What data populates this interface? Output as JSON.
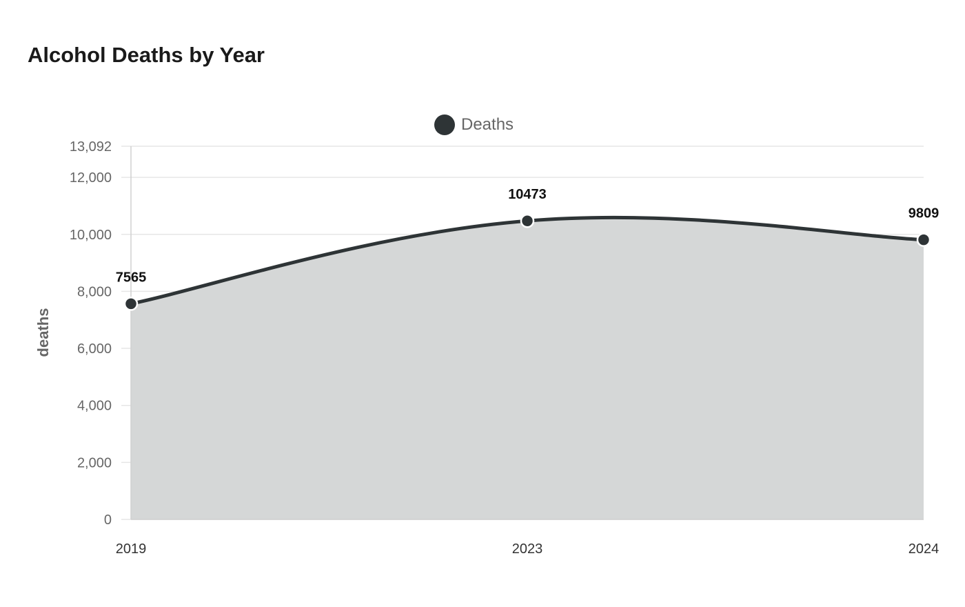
{
  "chart_data": {
    "type": "area",
    "title": "Alcohol Deaths by Year",
    "ylabel": "deaths",
    "xlabel": "",
    "categories": [
      "2019",
      "2023",
      "2024"
    ],
    "series": [
      {
        "name": "Deaths",
        "values": [
          7565,
          10473,
          9809
        ]
      }
    ],
    "data_labels": [
      "7565",
      "10473",
      "9809"
    ],
    "ylim": [
      0,
      13092
    ],
    "yticks": [
      0,
      2000,
      4000,
      6000,
      8000,
      10000,
      12000,
      13092
    ],
    "ytick_labels": [
      "0",
      "2,000",
      "4,000",
      "6,000",
      "8,000",
      "10,000",
      "12,000",
      "13,092"
    ],
    "grid": true,
    "legend_position": "top-center",
    "colors": {
      "line": "#2e3436",
      "fill": "#d5d7d7",
      "grid": "#e6e6e6",
      "axis": "#d0d0d0"
    }
  }
}
